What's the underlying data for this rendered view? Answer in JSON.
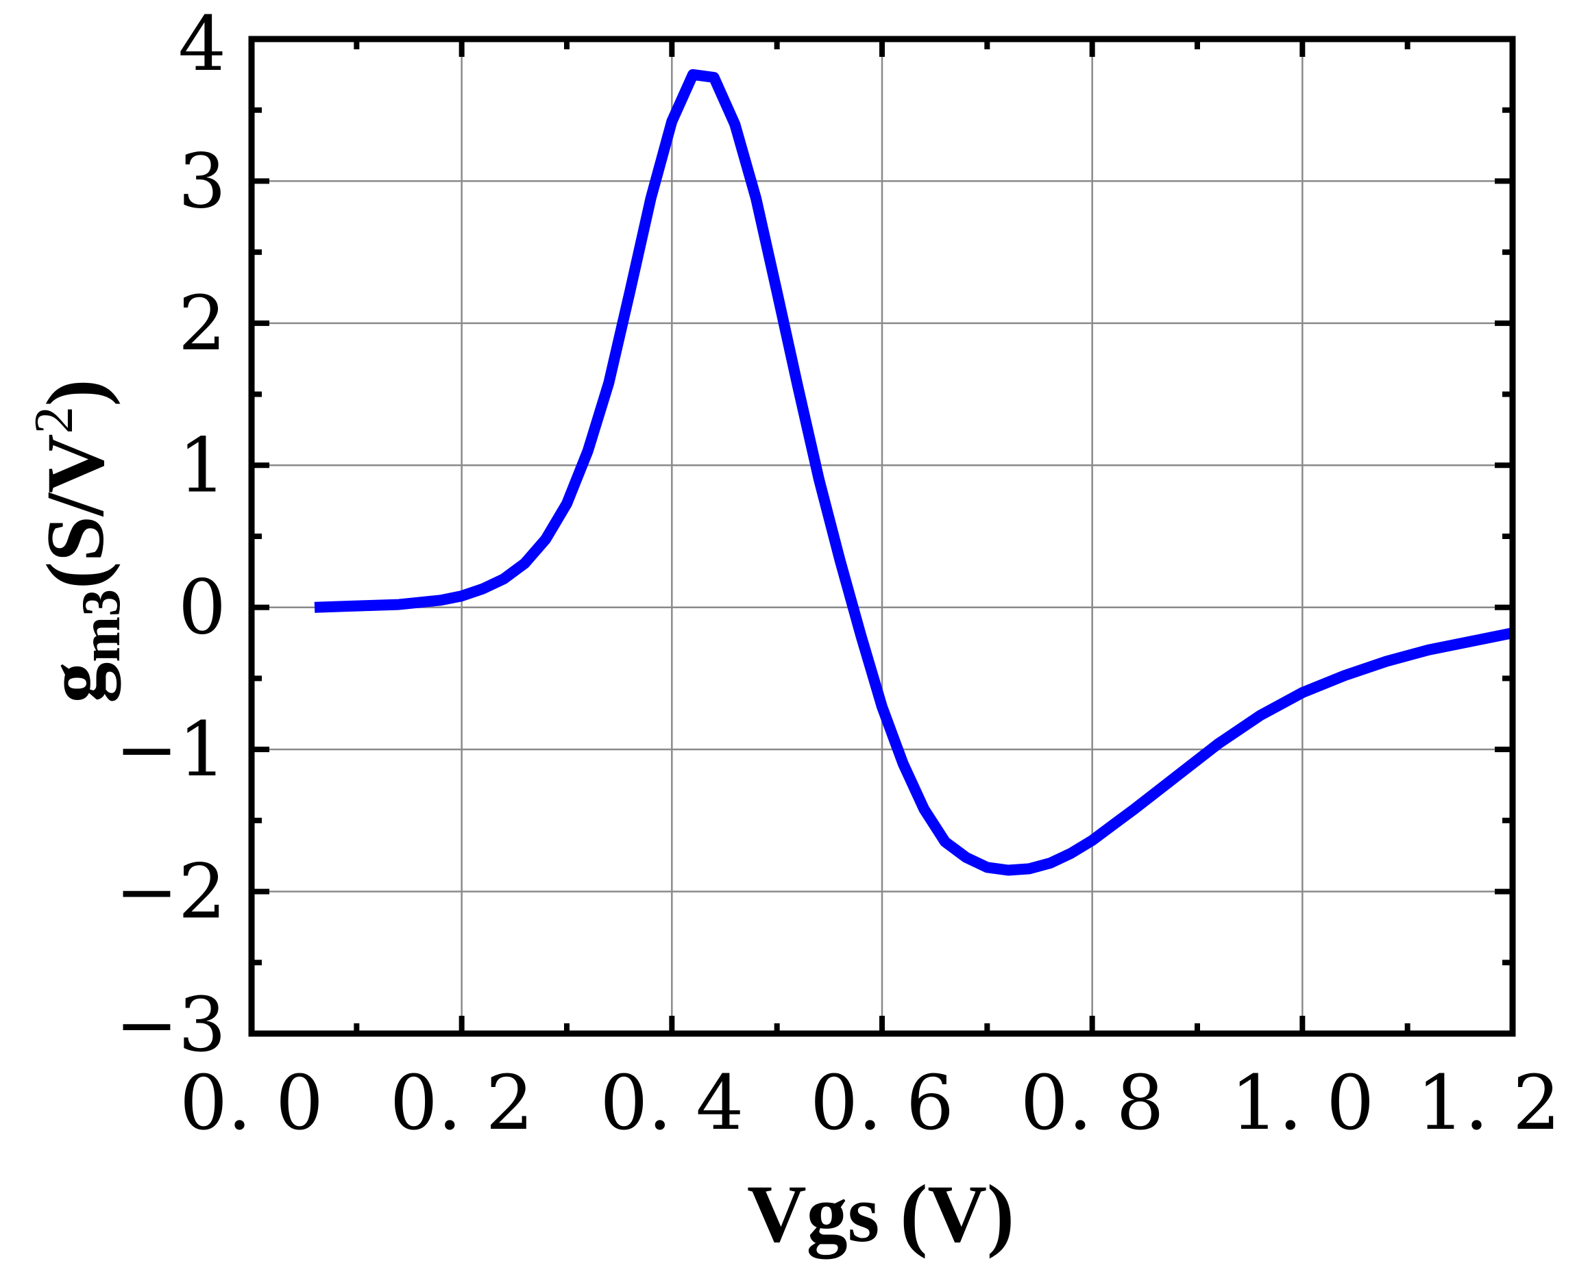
{
  "chart_data": {
    "type": "line",
    "xlabel": "Vgs (V)",
    "ylabel": {
      "base": "g",
      "subscript": "m3",
      "unit_open": "(S/V",
      "unit_sup": "2",
      "unit_close": ")"
    },
    "xlim": [
      0.0,
      1.2
    ],
    "ylim": [
      -3,
      4
    ],
    "xticks": [
      0.0,
      0.2,
      0.4,
      0.6,
      0.8,
      1.0,
      1.2
    ],
    "xtick_labels": [
      "0. 0",
      "0. 2",
      "0. 4",
      "0. 6",
      "0. 8",
      "1. 0",
      "1. 2"
    ],
    "yticks": [
      -3,
      -2,
      -1,
      0,
      1,
      2,
      3,
      4
    ],
    "ytick_labels": [
      "−3",
      "−2",
      "−1",
      "0",
      "1",
      "2",
      "3",
      "4"
    ],
    "grid": true,
    "series": [
      {
        "color": "#0000ff",
        "x": [
          0.06,
          0.1,
          0.14,
          0.18,
          0.2,
          0.22,
          0.24,
          0.26,
          0.28,
          0.3,
          0.32,
          0.34,
          0.36,
          0.38,
          0.4,
          0.42,
          0.44,
          0.46,
          0.48,
          0.5,
          0.52,
          0.54,
          0.56,
          0.58,
          0.6,
          0.62,
          0.64,
          0.66,
          0.68,
          0.7,
          0.72,
          0.74,
          0.76,
          0.78,
          0.8,
          0.82,
          0.84,
          0.88,
          0.92,
          0.96,
          1.0,
          1.04,
          1.08,
          1.12,
          1.16,
          1.2
        ],
        "y": [
          0.0,
          0.01,
          0.02,
          0.05,
          0.08,
          0.13,
          0.2,
          0.31,
          0.48,
          0.73,
          1.1,
          1.58,
          2.22,
          2.88,
          3.42,
          3.75,
          3.73,
          3.4,
          2.88,
          2.22,
          1.55,
          0.9,
          0.33,
          -0.2,
          -0.7,
          -1.1,
          -1.42,
          -1.65,
          -1.76,
          -1.83,
          -1.85,
          -1.84,
          -1.8,
          -1.73,
          -1.64,
          -1.53,
          -1.42,
          -1.19,
          -0.96,
          -0.76,
          -0.6,
          -0.48,
          -0.38,
          -0.3,
          -0.24,
          -0.18
        ]
      }
    ]
  }
}
